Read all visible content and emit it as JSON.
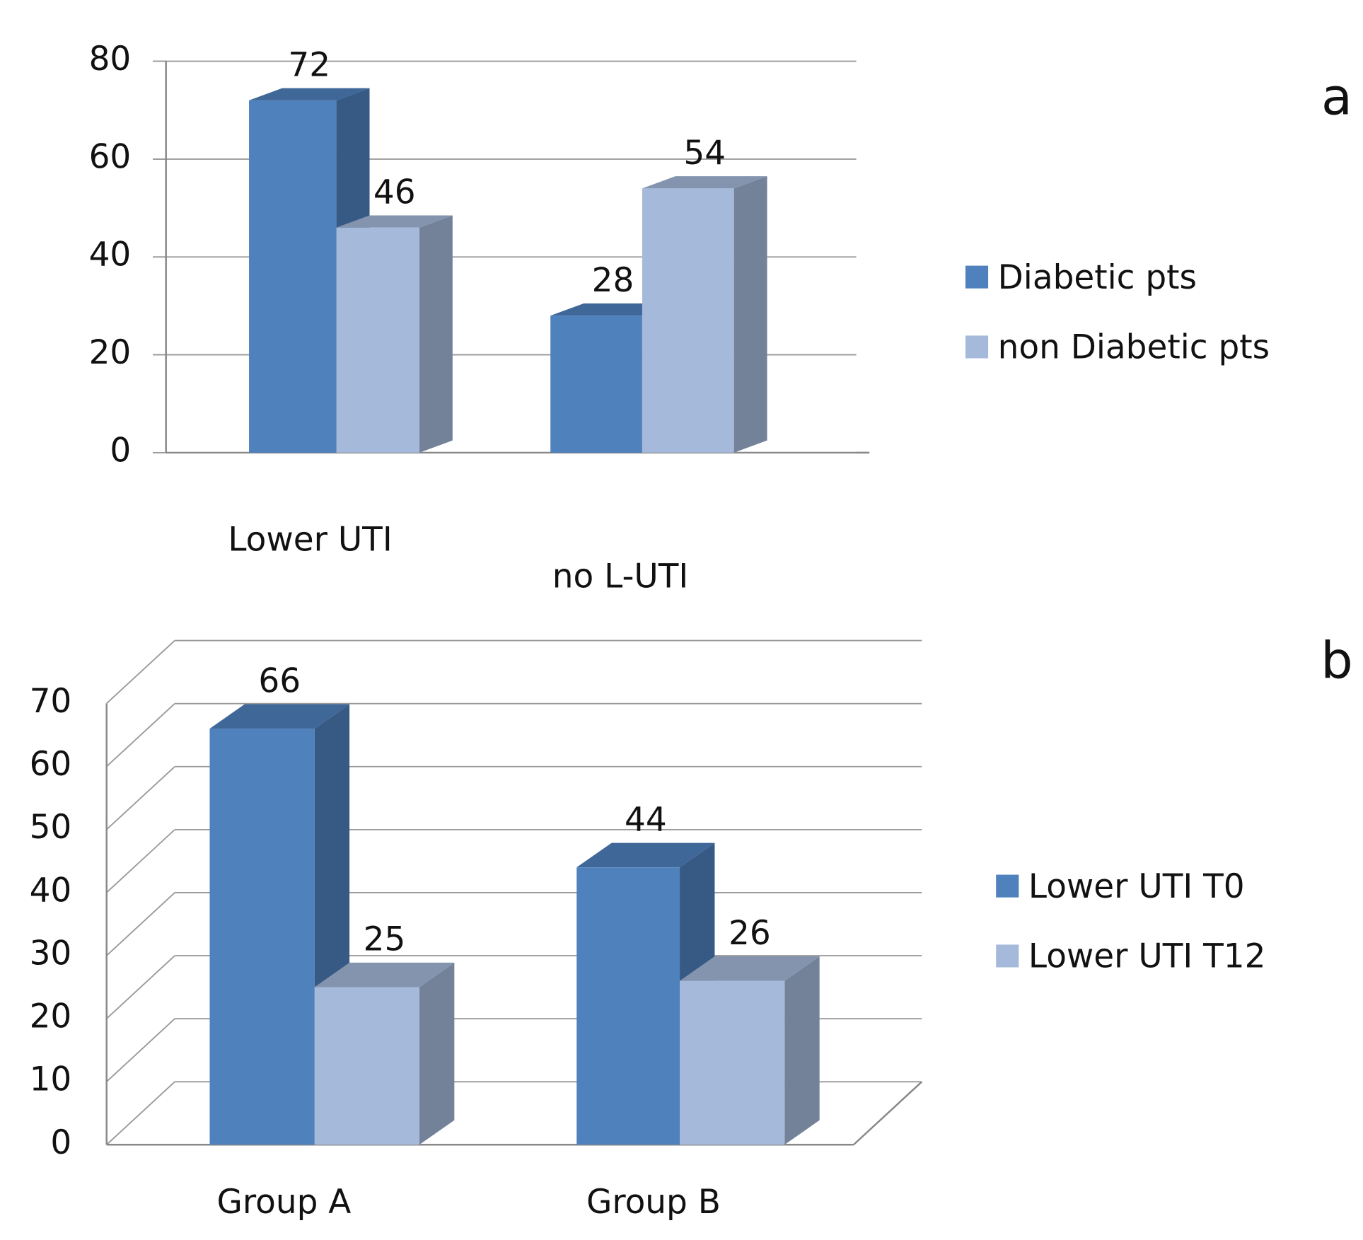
{
  "chart_data": [
    {
      "type": "bar3d",
      "panel_label": "a",
      "categories": [
        "Lower UTI",
        "no L-UTI"
      ],
      "series": [
        {
          "name": "Diabetic pts",
          "color": "#4f81bd",
          "values": [
            72,
            28
          ]
        },
        {
          "name": "non Diabetic pts",
          "color": "#a5b9db",
          "values": [
            46,
            54
          ]
        }
      ],
      "ylim": [
        0,
        80
      ],
      "yticks": [
        0,
        20,
        40,
        60,
        80
      ],
      "grid": true,
      "legend": "right"
    },
    {
      "type": "bar3d",
      "panel_label": "b",
      "categories": [
        "Group A",
        "Group B"
      ],
      "series": [
        {
          "name": "Lower UTI T0",
          "color": "#4f81bd",
          "values": [
            66,
            44
          ]
        },
        {
          "name": "Lower UTI T12",
          "color": "#a5b9db",
          "values": [
            25,
            26
          ]
        }
      ],
      "ylim": [
        0,
        70
      ],
      "yticks": [
        0,
        10,
        20,
        30,
        40,
        50,
        60,
        70
      ],
      "grid": true,
      "legend": "right"
    }
  ]
}
